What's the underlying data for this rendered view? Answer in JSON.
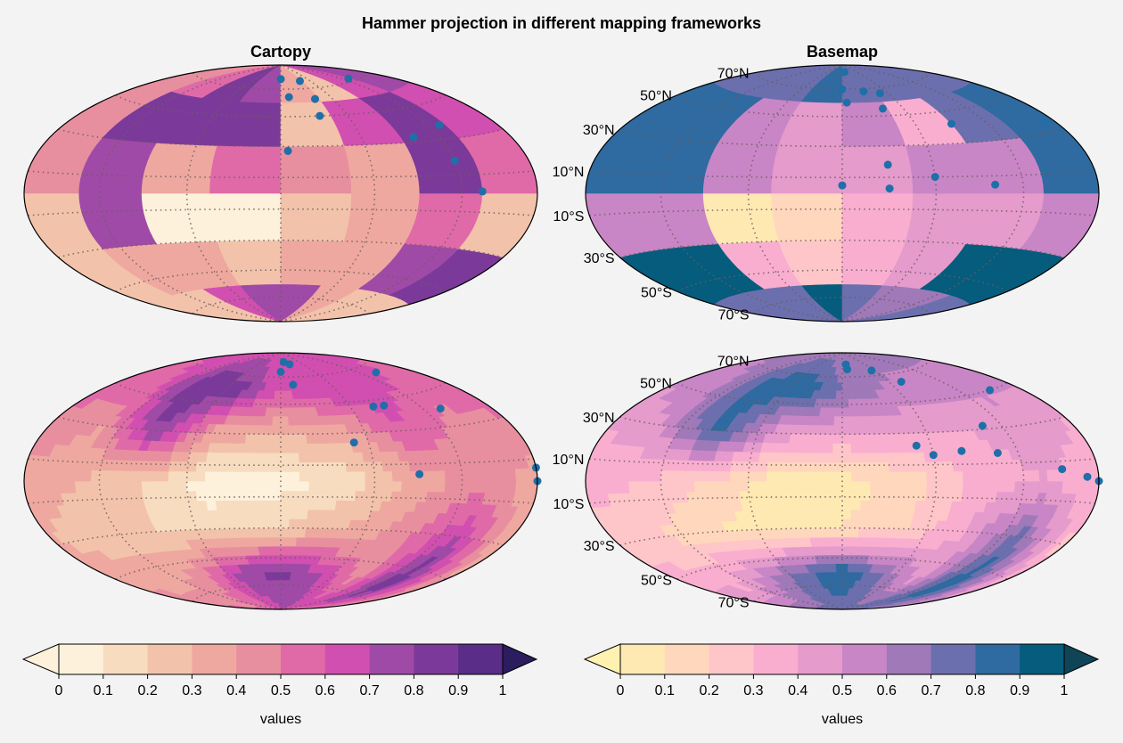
{
  "figure": {
    "title": "Hammer projection in different mapping frameworks",
    "left_title": "Cartopy",
    "right_title": "Basemap"
  },
  "colors": {
    "background": "#f3f3f3",
    "points": "#1f6fa8",
    "grid": "#6b5e5e",
    "cmap_left": [
      "#fdf1db",
      "#f7dcc0",
      "#f2c3aa",
      "#eea8a0",
      "#e88f9f",
      "#e06aa8",
      "#d14fb0",
      "#a04aa7",
      "#7b3a99",
      "#5a2d88",
      "#2b1d5e"
    ],
    "cmap_right": [
      "#fff2b0",
      "#ffe9b3",
      "#ffd7bd",
      "#ffc6c9",
      "#f9aecf",
      "#e59bcc",
      "#c986c6",
      "#a079b9",
      "#6c6fae",
      "#2f6aa0",
      "#055c7d",
      "#0f4556"
    ]
  },
  "chart_data": [
    {
      "type": "heatmap",
      "framework": "Cartopy",
      "projection": "hammer",
      "render": "pcolor",
      "lon_edges": [
        -180,
        -135,
        -90,
        -45,
        0,
        45,
        90,
        135,
        180
      ],
      "lat_edges": [
        -90,
        -60,
        -30,
        0,
        30,
        60,
        90
      ],
      "values": [
        [
          0.2,
          0.25,
          0.6,
          0.75,
          0.7,
          0.3,
          0.25,
          0.2
        ],
        [
          0.2,
          0.35,
          0.3,
          0.25,
          0.3,
          0.35,
          0.75,
          0.85
        ],
        [
          0.2,
          0.75,
          0.05,
          0.05,
          0.2,
          0.3,
          0.55,
          0.2
        ],
        [
          0.4,
          0.75,
          0.35,
          0.55,
          0.4,
          0.3,
          0.8,
          0.55
        ],
        [
          0.45,
          0.8,
          0.8,
          0.85,
          0.25,
          0.6,
          0.85,
          0.65
        ],
        [
          0.45,
          0.5,
          0.85,
          0.75,
          0.3,
          0.25,
          0.65,
          0.7
        ]
      ],
      "points": [
        [
          0,
          78
        ],
        [
          40,
          76
        ],
        [
          130,
          72
        ],
        [
          10,
          64
        ],
        [
          40,
          62
        ],
        [
          35,
          50
        ],
        [
          100,
          33
        ],
        [
          120,
          18
        ],
        [
          135,
          1
        ],
        [
          5,
          27
        ],
        [
          130,
          38
        ]
      ]
    },
    {
      "type": "heatmap",
      "framework": "Basemap",
      "projection": "hammer",
      "render": "pcolor",
      "lat_ticks": [
        "70°N",
        "50°N",
        "30°N",
        "10°N",
        "10°S",
        "30°S",
        "50°S",
        "70°S"
      ],
      "lon_edges": [
        -180,
        -135,
        -90,
        -45,
        0,
        45,
        90,
        135,
        180
      ],
      "lat_edges": [
        -90,
        -60,
        -30,
        0,
        30,
        60,
        90
      ],
      "values": [
        [
          0.7,
          0.7,
          0.7,
          0.9,
          0.75,
          0.65,
          0.65,
          0.7
        ],
        [
          0.95,
          0.95,
          0.35,
          0.2,
          0.35,
          0.4,
          0.95,
          0.95
        ],
        [
          0.55,
          0.55,
          0.05,
          0.1,
          0.35,
          0.4,
          0.45,
          0.55
        ],
        [
          0.85,
          0.85,
          0.55,
          0.45,
          0.45,
          0.55,
          0.5,
          0.85
        ],
        [
          0.85,
          0.85,
          0.55,
          0.4,
          0.55,
          0.35,
          0.75,
          0.85
        ],
        [
          0.75,
          0.75,
          0.75,
          0.8,
          0.75,
          0.7,
          0.75,
          0.75
        ]
      ],
      "points": [
        [
          10,
          84
        ],
        [
          0,
          70
        ],
        [
          30,
          68
        ],
        [
          50,
          66
        ],
        [
          5,
          60
        ],
        [
          40,
          55
        ],
        [
          90,
          42
        ],
        [
          30,
          18
        ],
        [
          60,
          10
        ],
        [
          0,
          5
        ],
        [
          30,
          3
        ],
        [
          100,
          5
        ],
        [
          170,
          35
        ]
      ]
    },
    {
      "type": "heatmap",
      "framework": "Cartopy",
      "projection": "hammer",
      "render": "contourf",
      "lon": [
        -180,
        -135,
        -90,
        -45,
        0,
        45,
        90,
        135,
        180
      ],
      "lat": [
        -90,
        -60,
        -30,
        0,
        30,
        60,
        90
      ],
      "values": [
        [
          0.55,
          0.55,
          0.6,
          0.65,
          0.7,
          0.75,
          0.7,
          0.6,
          0.55
        ],
        [
          0.4,
          0.35,
          0.45,
          0.75,
          0.85,
          0.7,
          0.45,
          0.9,
          0.4
        ],
        [
          0.3,
          0.25,
          0.2,
          0.15,
          0.2,
          0.3,
          0.45,
          0.7,
          0.3
        ],
        [
          0.35,
          0.3,
          0.2,
          0.05,
          0.05,
          0.15,
          0.35,
          0.45,
          0.35
        ],
        [
          0.5,
          0.4,
          0.8,
          0.35,
          0.3,
          0.35,
          0.6,
          0.45,
          0.5
        ],
        [
          0.55,
          0.6,
          0.9,
          0.85,
          0.6,
          0.7,
          0.65,
          0.6,
          0.55
        ],
        [
          0.65,
          0.65,
          0.65,
          0.65,
          0.65,
          0.65,
          0.65,
          0.65,
          0.65
        ]
      ],
      "points": [
        [
          10,
          82
        ],
        [
          25,
          80
        ],
        [
          0,
          74
        ],
        [
          15,
          64
        ],
        [
          140,
          65
        ],
        [
          80,
          46
        ],
        [
          90,
          46
        ],
        [
          135,
          40
        ],
        [
          50,
          24
        ],
        [
          90,
          4
        ],
        [
          180,
          6
        ],
        [
          180,
          0
        ]
      ]
    },
    {
      "type": "heatmap",
      "framework": "Basemap",
      "projection": "hammer",
      "render": "contourf",
      "lat_ticks": [
        "70°N",
        "50°N",
        "30°N",
        "10°N",
        "10°S",
        "30°S",
        "50°S",
        "70°S"
      ],
      "lon": [
        -180,
        -135,
        -90,
        -45,
        0,
        45,
        90,
        135,
        180
      ],
      "lat": [
        -90,
        -60,
        -30,
        0,
        30,
        60,
        90
      ],
      "values": [
        [
          0.75,
          0.75,
          0.75,
          0.8,
          0.75,
          0.75,
          0.75,
          0.75,
          0.75
        ],
        [
          0.4,
          0.35,
          0.55,
          0.75,
          0.9,
          0.7,
          0.45,
          0.9,
          0.4
        ],
        [
          0.25,
          0.2,
          0.1,
          0.05,
          0.1,
          0.2,
          0.4,
          0.75,
          0.25
        ],
        [
          0.35,
          0.3,
          0.2,
          0.05,
          0.05,
          0.15,
          0.35,
          0.4,
          0.35
        ],
        [
          0.4,
          0.5,
          0.85,
          0.45,
          0.4,
          0.4,
          0.4,
          0.45,
          0.4
        ],
        [
          0.55,
          0.6,
          0.85,
          0.9,
          0.7,
          0.6,
          0.55,
          0.55,
          0.55
        ],
        [
          0.65,
          0.65,
          0.65,
          0.65,
          0.65,
          0.65,
          0.65,
          0.65,
          0.65
        ]
      ],
      "points": [
        [
          10,
          80
        ],
        [
          10,
          76
        ],
        [
          55,
          74
        ],
        [
          75,
          64
        ],
        [
          150,
          50
        ],
        [
          105,
          32
        ],
        [
          50,
          22
        ],
        [
          60,
          16
        ],
        [
          80,
          18
        ],
        [
          105,
          16
        ],
        [
          150,
          6
        ],
        [
          170,
          2
        ],
        [
          180,
          0
        ]
      ]
    }
  ],
  "colorbars": [
    {
      "name": "left",
      "ticks": [
        "0",
        "0.1",
        "0.2",
        "0.3",
        "0.4",
        "0.5",
        "0.6",
        "0.7",
        "0.8",
        "0.9",
        "1"
      ],
      "label": "values",
      "range": [
        0,
        1
      ]
    },
    {
      "name": "right",
      "ticks": [
        "0",
        "0.1",
        "0.2",
        "0.3",
        "0.4",
        "0.5",
        "0.6",
        "0.7",
        "0.8",
        "0.9",
        "1"
      ],
      "label": "values",
      "range": [
        0,
        1
      ]
    }
  ]
}
